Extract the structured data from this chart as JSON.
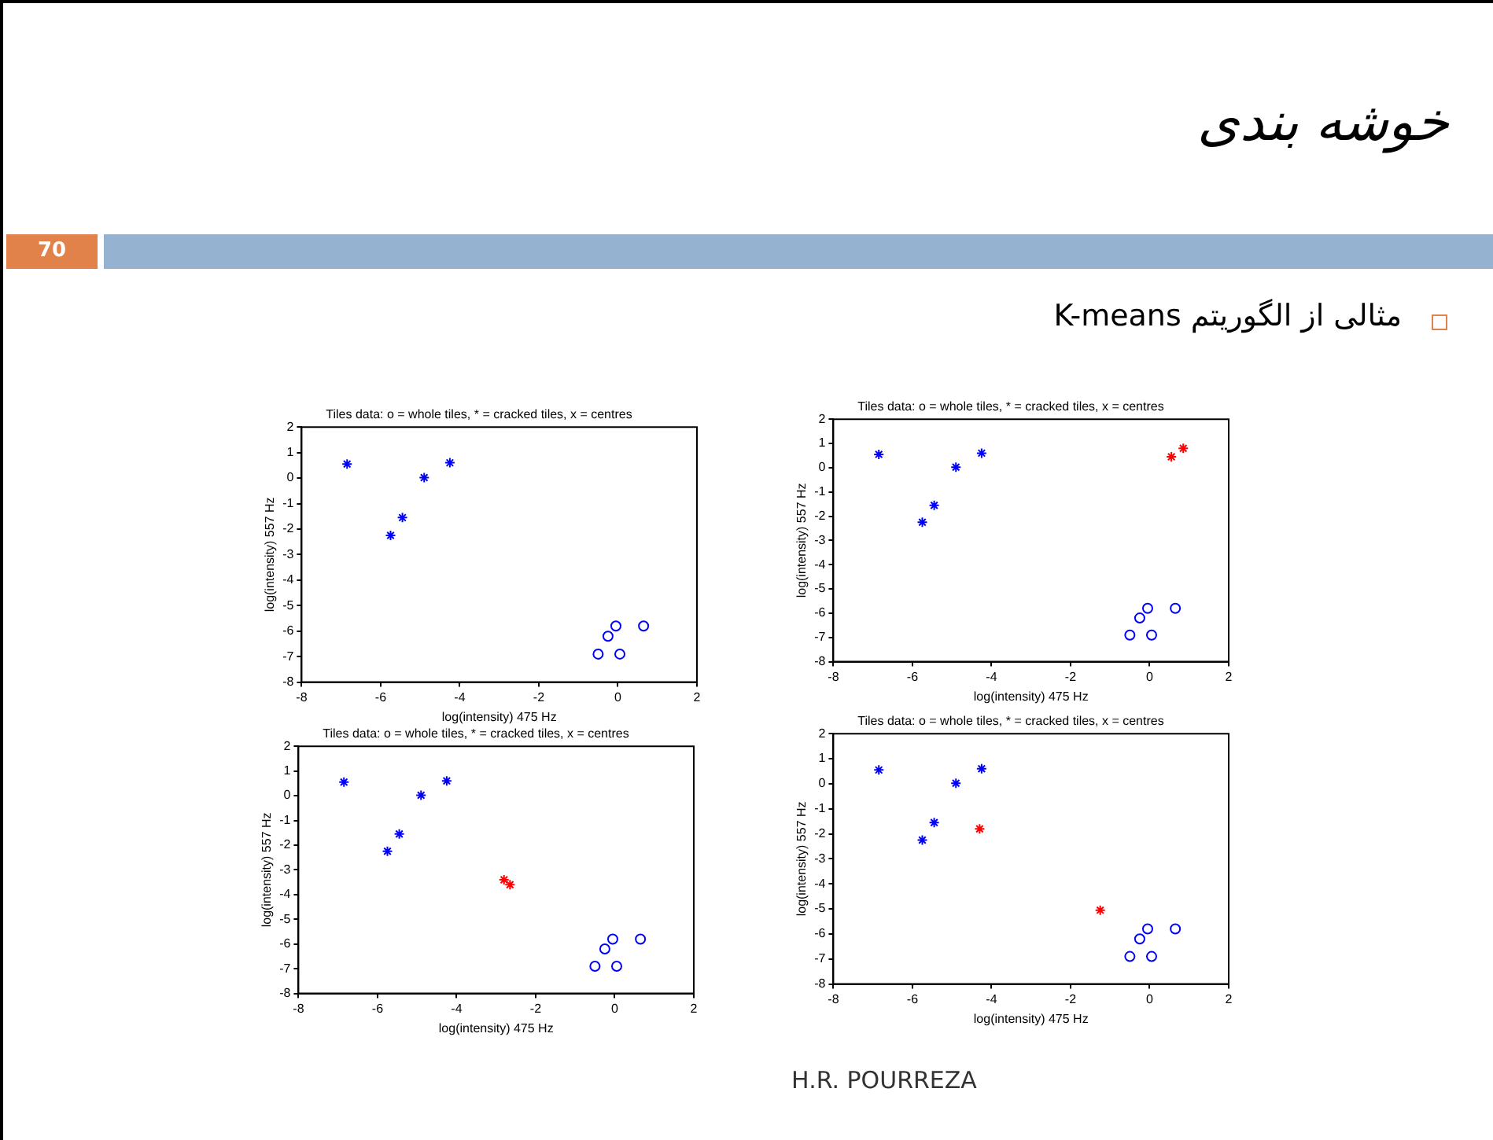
{
  "chart_data": [
    {
      "type": "other",
      "title": "خوشه بندی",
      "subtitle": "مثالی از الگوریتم K-means",
      "annotations": [
        "70",
        "H.R. POURREZA"
      ]
    },
    {
      "type": "scatter",
      "title": "Tiles data: o = whole tiles, * = cracked tiles, x = centres",
      "xlabel": "log(intensity) 475 Hz",
      "ylabel": "log(intensity) 557 Hz",
      "xlim": [
        -8,
        2
      ],
      "xticks": [
        -8,
        -6,
        -4,
        -2,
        0,
        2
      ],
      "ylim": [
        -8,
        2
      ],
      "yticks": [
        -8,
        -7,
        -6,
        -5,
        -4,
        -3,
        -2,
        -1,
        0,
        1,
        2
      ],
      "grid": false,
      "legend": false,
      "series": [
        {
          "color": "#0000ff",
          "marker": "cross",
          "x": [
            -6.85,
            -5.75,
            -5.45,
            -4.9,
            -4.25
          ],
          "values": [
            0.55,
            -2.25,
            -1.55,
            0.02,
            0.6
          ]
        },
        {
          "color": "#0000ff",
          "marker": "circle",
          "x": [
            -0.5,
            -0.25,
            -0.05,
            0.05,
            0.65
          ],
          "values": [
            -6.9,
            -6.2,
            -5.8,
            -6.9,
            -5.8
          ]
        }
      ]
    },
    {
      "type": "scatter",
      "title": "Tiles data: o = whole tiles, * = cracked tiles, x = centres",
      "xlabel": "log(intensity) 475 Hz",
      "ylabel": "log(intensity) 557 Hz",
      "xlim": [
        -8,
        2
      ],
      "xticks": [
        -8,
        -6,
        -4,
        -2,
        0,
        2
      ],
      "ylim": [
        -8,
        2
      ],
      "yticks": [
        -8,
        -7,
        -6,
        -5,
        -4,
        -3,
        -2,
        -1,
        0,
        1,
        2
      ],
      "grid": false,
      "legend": false,
      "series": [
        {
          "color": "#0000ff",
          "marker": "cross",
          "x": [
            -6.85,
            -5.75,
            -5.45,
            -4.9,
            -4.25
          ],
          "values": [
            0.55,
            -2.25,
            -1.55,
            0.02,
            0.6
          ]
        },
        {
          "color": "#0000ff",
          "marker": "circle",
          "x": [
            -0.5,
            -0.25,
            -0.05,
            0.05,
            0.65
          ],
          "values": [
            -6.9,
            -6.2,
            -5.8,
            -6.9,
            -5.8
          ]
        },
        {
          "color": "#ff0000",
          "marker": "cross",
          "x": [
            0.55,
            0.85
          ],
          "values": [
            0.45,
            0.8
          ]
        }
      ]
    },
    {
      "type": "scatter",
      "title": "Tiles data: o = whole tiles, * = cracked tiles, x = centres",
      "xlabel": "log(intensity) 475 Hz",
      "ylabel": "log(intensity) 557 Hz",
      "xlim": [
        -8,
        2
      ],
      "xticks": [
        -8,
        -6,
        -4,
        -2,
        0,
        2
      ],
      "ylim": [
        -8,
        2
      ],
      "yticks": [
        -8,
        -7,
        -6,
        -5,
        -4,
        -3,
        -2,
        -1,
        0,
        1,
        2
      ],
      "grid": false,
      "legend": false,
      "series": [
        {
          "color": "#0000ff",
          "marker": "cross",
          "x": [
            -6.85,
            -5.75,
            -5.45,
            -4.9,
            -4.25
          ],
          "values": [
            0.55,
            -2.25,
            -1.55,
            0.02,
            0.6
          ]
        },
        {
          "color": "#0000ff",
          "marker": "circle",
          "x": [
            -0.5,
            -0.25,
            -0.05,
            0.05,
            0.65
          ],
          "values": [
            -6.9,
            -6.2,
            -5.8,
            -6.9,
            -5.8
          ]
        },
        {
          "color": "#ff0000",
          "marker": "cross",
          "x": [
            -2.8,
            -2.65
          ],
          "values": [
            -3.4,
            -3.6
          ]
        }
      ]
    },
    {
      "type": "scatter",
      "title": "Tiles data: o = whole tiles, * = cracked tiles, x = centres",
      "xlabel": "log(intensity) 475 Hz",
      "ylabel": "log(intensity) 557 Hz",
      "xlim": [
        -8,
        2
      ],
      "xticks": [
        -8,
        -6,
        -4,
        -2,
        0,
        2
      ],
      "ylim": [
        -8,
        2
      ],
      "yticks": [
        -8,
        -7,
        -6,
        -5,
        -4,
        -3,
        -2,
        -1,
        0,
        1,
        2
      ],
      "grid": false,
      "legend": false,
      "series": [
        {
          "color": "#0000ff",
          "marker": "cross",
          "x": [
            -6.85,
            -5.75,
            -5.45,
            -4.9,
            -4.25
          ],
          "values": [
            0.55,
            -2.25,
            -1.55,
            0.02,
            0.6
          ]
        },
        {
          "color": "#0000ff",
          "marker": "circle",
          "x": [
            -0.5,
            -0.25,
            -0.05,
            0.05,
            0.65
          ],
          "values": [
            -6.9,
            -6.2,
            -5.8,
            -6.9,
            -5.8
          ]
        },
        {
          "color": "#ff0000",
          "marker": "cross",
          "x": [
            -4.3,
            -1.25
          ],
          "values": [
            -1.8,
            -5.05
          ]
        }
      ]
    }
  ]
}
